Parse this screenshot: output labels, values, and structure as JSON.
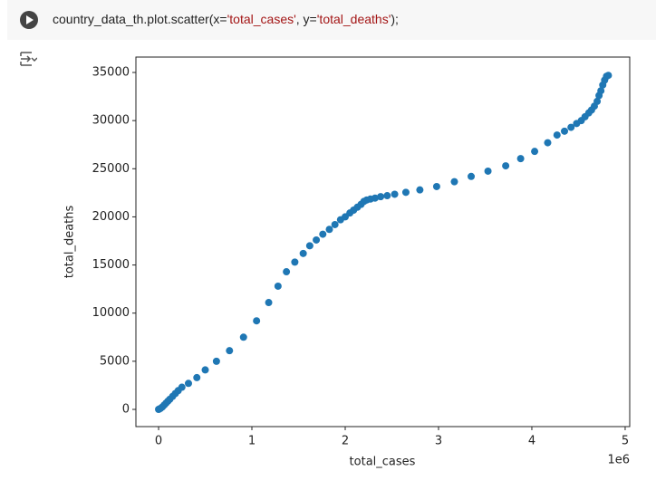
{
  "code": [
    "country_data_th.plot.scatter(x=",
    "'total_cases'",
    ", y=",
    "'total_deaths'",
    ");"
  ],
  "chart_data": {
    "type": "scatter",
    "xlabel": "total_cases",
    "ylabel": "total_deaths",
    "x_offset_label": "1e6",
    "color": "#1f77b4",
    "grid": false,
    "xlim": [
      -0.243,
      5.049
    ],
    "xticks": [
      0,
      1,
      2,
      3,
      4,
      5
    ],
    "ylim": [
      -1787,
      36600
    ],
    "yticks": [
      0,
      5000,
      10000,
      15000,
      20000,
      25000,
      30000,
      35000
    ],
    "series": [
      {
        "name": "total_deaths",
        "x": [
          0,
          0.01,
          0.02,
          0.04,
          0.06,
          0.08,
          0.1,
          0.12,
          0.15,
          0.18,
          0.21,
          0.25,
          0.32,
          0.41,
          0.5,
          0.62,
          0.76,
          0.91,
          1.05,
          1.18,
          1.28,
          1.37,
          1.46,
          1.55,
          1.62,
          1.69,
          1.76,
          1.83,
          1.89,
          1.95,
          2.0,
          2.05,
          2.09,
          2.13,
          2.17,
          2.2,
          2.23,
          2.27,
          2.32,
          2.38,
          2.45,
          2.53,
          2.65,
          2.8,
          2.98,
          3.17,
          3.35,
          3.53,
          3.72,
          3.88,
          4.03,
          4.17,
          4.27,
          4.35,
          4.42,
          4.48,
          4.53,
          4.57,
          4.61,
          4.64,
          4.67,
          4.7,
          4.72,
          4.74,
          4.76,
          4.78,
          4.8,
          4.82
        ],
        "values": [
          0,
          50,
          100,
          250,
          450,
          650,
          850,
          1050,
          1350,
          1650,
          1950,
          2300,
          2700,
          3300,
          4100,
          5000,
          6100,
          7500,
          9200,
          11100,
          12800,
          14300,
          15300,
          16200,
          17000,
          17600,
          18200,
          18700,
          19200,
          19700,
          20000,
          20400,
          20700,
          21000,
          21300,
          21600,
          21750,
          21850,
          21950,
          22100,
          22200,
          22350,
          22550,
          22800,
          23150,
          23650,
          24200,
          24750,
          25300,
          26050,
          26800,
          27700,
          28500,
          28900,
          29300,
          29700,
          30000,
          30400,
          30800,
          31100,
          31500,
          32000,
          32600,
          33100,
          33700,
          34200,
          34600,
          34700
        ]
      }
    ]
  }
}
